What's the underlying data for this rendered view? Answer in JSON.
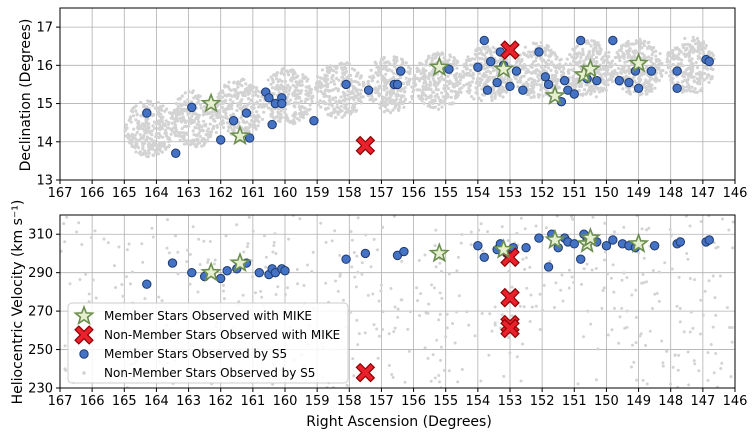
{
  "chart_data": [
    {
      "type": "scatter",
      "xlabel": "",
      "ylabel": "Declination (Degrees)",
      "xlim": [
        167,
        146
      ],
      "ylim": [
        13,
        17.5
      ],
      "x_ticks": [
        167,
        166,
        165,
        164,
        163,
        162,
        161,
        160,
        159,
        158,
        157,
        156,
        155,
        154,
        153,
        152,
        151,
        150,
        149,
        148,
        147,
        146
      ],
      "y_ticks": [
        13,
        14,
        15,
        16,
        17
      ],
      "grid": true,
      "background_field": {
        "name": "Non-Member Stars Observed by S5",
        "color": "#d3d3d3",
        "fields": [
          [
            164.2,
            14.35
          ],
          [
            162.8,
            14.6
          ],
          [
            161.4,
            14.9
          ],
          [
            159.9,
            15.2
          ],
          [
            158.3,
            15.35
          ],
          [
            156.7,
            15.5
          ],
          [
            155.2,
            15.6
          ],
          [
            153.7,
            15.75
          ],
          [
            152.1,
            15.85
          ],
          [
            150.5,
            15.9
          ],
          [
            149.0,
            15.95
          ],
          [
            147.4,
            16.0
          ]
        ]
      },
      "series": [
        {
          "name": "Member Stars Observed by S5",
          "marker": "circle",
          "color": "#4472c4",
          "points": [
            [
              164.3,
              14.75
            ],
            [
              163.4,
              13.7
            ],
            [
              162.9,
              14.9
            ],
            [
              162.0,
              14.05
            ],
            [
              161.6,
              14.55
            ],
            [
              161.2,
              14.75
            ],
            [
              161.1,
              14.1
            ],
            [
              160.6,
              15.3
            ],
            [
              160.5,
              15.15
            ],
            [
              160.4,
              14.45
            ],
            [
              160.3,
              15.0
            ],
            [
              160.1,
              15.15
            ],
            [
              160.1,
              15.0
            ],
            [
              159.1,
              14.55
            ],
            [
              158.1,
              15.5
            ],
            [
              157.4,
              15.35
            ],
            [
              156.6,
              15.5
            ],
            [
              156.5,
              15.5
            ],
            [
              156.4,
              15.85
            ],
            [
              154.9,
              15.9
            ],
            [
              154.0,
              15.95
            ],
            [
              153.8,
              16.65
            ],
            [
              153.7,
              15.35
            ],
            [
              153.6,
              16.1
            ],
            [
              153.4,
              15.55
            ],
            [
              153.3,
              16.35
            ],
            [
              153.2,
              16.0
            ],
            [
              153.0,
              15.45
            ],
            [
              152.8,
              15.85
            ],
            [
              152.6,
              15.35
            ],
            [
              152.1,
              16.35
            ],
            [
              151.9,
              15.7
            ],
            [
              151.8,
              15.5
            ],
            [
              151.4,
              15.05
            ],
            [
              151.3,
              15.6
            ],
            [
              151.2,
              15.35
            ],
            [
              151.0,
              15.25
            ],
            [
              150.8,
              16.65
            ],
            [
              150.6,
              15.65
            ],
            [
              150.3,
              15.6
            ],
            [
              149.8,
              16.65
            ],
            [
              149.6,
              15.6
            ],
            [
              149.3,
              15.55
            ],
            [
              149.1,
              15.85
            ],
            [
              149.0,
              15.4
            ],
            [
              148.6,
              15.85
            ],
            [
              147.8,
              15.85
            ],
            [
              147.8,
              15.4
            ],
            [
              146.9,
              16.15
            ],
            [
              146.8,
              16.1
            ]
          ]
        },
        {
          "name": "Member Stars Observed with MIKE",
          "marker": "star",
          "color": "#6b8e4e",
          "points": [
            [
              162.3,
              15.0
            ],
            [
              161.4,
              14.15
            ],
            [
              155.2,
              15.95
            ],
            [
              153.2,
              15.9
            ],
            [
              151.6,
              15.2
            ],
            [
              150.7,
              15.75
            ],
            [
              150.5,
              15.9
            ],
            [
              149.0,
              16.05
            ]
          ]
        },
        {
          "name": "Non-Member Stars Observed with MIKE",
          "marker": "x",
          "color": "#e8212c",
          "points": [
            [
              157.5,
              13.9
            ],
            [
              153.0,
              16.4
            ]
          ]
        }
      ]
    },
    {
      "type": "scatter",
      "xlabel": "Right Ascension (Degrees)",
      "ylabel": "Heliocentric Velocity (km s⁻¹)",
      "xlim": [
        167,
        146
      ],
      "ylim": [
        230,
        320
      ],
      "x_ticks": [
        167,
        166,
        165,
        164,
        163,
        162,
        161,
        160,
        159,
        158,
        157,
        156,
        155,
        154,
        153,
        152,
        151,
        150,
        149,
        148,
        147,
        146
      ],
      "y_ticks": [
        230,
        250,
        270,
        290,
        310
      ],
      "grid": true,
      "legend_position": "bottom-left",
      "background_scatter": {
        "name": "Non-Member Stars Observed by S5",
        "color": "#d3d3d3"
      },
      "series": [
        {
          "name": "Member Stars Observed by S5",
          "marker": "circle",
          "color": "#4472c4",
          "points": [
            [
              164.3,
              284
            ],
            [
              163.5,
              295
            ],
            [
              162.9,
              290
            ],
            [
              162.5,
              288
            ],
            [
              162.0,
              287
            ],
            [
              161.8,
              291
            ],
            [
              161.5,
              292
            ],
            [
              161.2,
              295
            ],
            [
              160.8,
              290
            ],
            [
              160.5,
              289
            ],
            [
              160.4,
              292
            ],
            [
              160.3,
              290
            ],
            [
              160.1,
              292
            ],
            [
              160.0,
              291
            ],
            [
              158.1,
              297
            ],
            [
              157.5,
              300
            ],
            [
              156.5,
              299
            ],
            [
              156.3,
              301
            ],
            [
              154.0,
              304
            ],
            [
              153.8,
              298
            ],
            [
              153.4,
              302
            ],
            [
              153.3,
              305
            ],
            [
              153.1,
              300
            ],
            [
              153.0,
              299
            ],
            [
              152.9,
              303
            ],
            [
              152.5,
              303
            ],
            [
              152.1,
              308
            ],
            [
              151.8,
              293
            ],
            [
              151.7,
              310
            ],
            [
              151.5,
              303
            ],
            [
              151.3,
              308
            ],
            [
              151.2,
              306
            ],
            [
              151.0,
              305
            ],
            [
              150.8,
              297
            ],
            [
              150.7,
              310
            ],
            [
              150.6,
              307
            ],
            [
              150.3,
              306
            ],
            [
              150.0,
              304
            ],
            [
              149.8,
              307
            ],
            [
              149.5,
              305
            ],
            [
              149.3,
              304
            ],
            [
              149.1,
              303
            ],
            [
              148.5,
              304
            ],
            [
              147.8,
              305
            ],
            [
              147.7,
              306
            ],
            [
              146.9,
              306
            ],
            [
              146.8,
              307
            ]
          ]
        },
        {
          "name": "Member Stars Observed with MIKE",
          "marker": "star",
          "color": "#6b8e4e",
          "points": [
            [
              162.3,
              290
            ],
            [
              161.4,
              295
            ],
            [
              155.2,
              300
            ],
            [
              153.2,
              302
            ],
            [
              151.6,
              307
            ],
            [
              150.6,
              305
            ],
            [
              150.5,
              308
            ],
            [
              149.0,
              305
            ]
          ]
        },
        {
          "name": "Non-Member Stars Observed with MIKE",
          "marker": "x",
          "color": "#e8212c",
          "points": [
            [
              157.5,
              238
            ],
            [
              153.0,
              298
            ],
            [
              153.0,
              277
            ],
            [
              153.0,
              263
            ],
            [
              153.0,
              261
            ]
          ]
        }
      ],
      "legend": [
        {
          "label": "Member Stars Observed with MIKE",
          "marker": "star",
          "color": "#6b8e4e"
        },
        {
          "label": "Non-Member Stars Observed with MIKE",
          "marker": "x",
          "color": "#e8212c"
        },
        {
          "label": "Member Stars Observed by S5",
          "marker": "circle",
          "color": "#4472c4"
        },
        {
          "label": "Non-Member Stars Observed by S5",
          "marker": "dot",
          "color": "#d3d3d3"
        }
      ]
    }
  ]
}
